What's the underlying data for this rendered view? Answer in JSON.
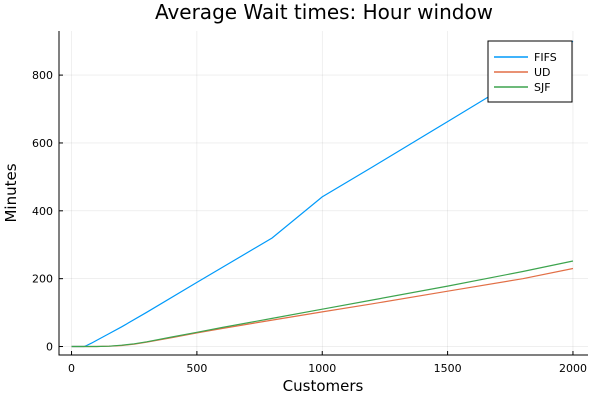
{
  "chart_data": {
    "type": "line",
    "title": "Average Wait times: Hour window",
    "xlabel": "Customers",
    "ylabel": "Minutes",
    "xlim": [
      -50,
      2060
    ],
    "ylim": [
      -25,
      930
    ],
    "xticks": [
      0,
      500,
      1000,
      1500,
      2000
    ],
    "yticks": [
      0,
      200,
      400,
      600,
      800
    ],
    "grid": true,
    "legend_position": "top-right",
    "series": [
      {
        "name": "FIFS",
        "color": "#009AFA",
        "x": [
          0,
          50,
          60,
          80,
          100,
          150,
          200,
          300,
          500,
          800,
          1000,
          1200,
          1500,
          1800,
          2000
        ],
        "y": [
          0,
          0,
          3,
          10,
          18,
          38,
          58,
          101,
          189,
          320,
          441,
          529,
          663,
          797,
          900
        ]
      },
      {
        "name": "UD",
        "color": "#E26F46",
        "x": [
          0,
          100,
          150,
          200,
          250,
          300,
          400,
          500,
          600,
          800,
          1000,
          1200,
          1500,
          1800,
          2000
        ],
        "y": [
          0,
          0,
          1,
          3,
          7,
          13,
          26,
          40,
          53,
          78,
          102,
          126,
          163,
          200,
          230
        ]
      },
      {
        "name": "SJF",
        "color": "#3DA44E",
        "x": [
          0,
          100,
          150,
          200,
          250,
          300,
          400,
          500,
          600,
          800,
          1000,
          1200,
          1500,
          1800,
          2000
        ],
        "y": [
          0,
          0,
          1,
          4,
          8,
          14,
          28,
          42,
          56,
          83,
          110,
          137,
          178,
          221,
          252
        ]
      }
    ]
  }
}
